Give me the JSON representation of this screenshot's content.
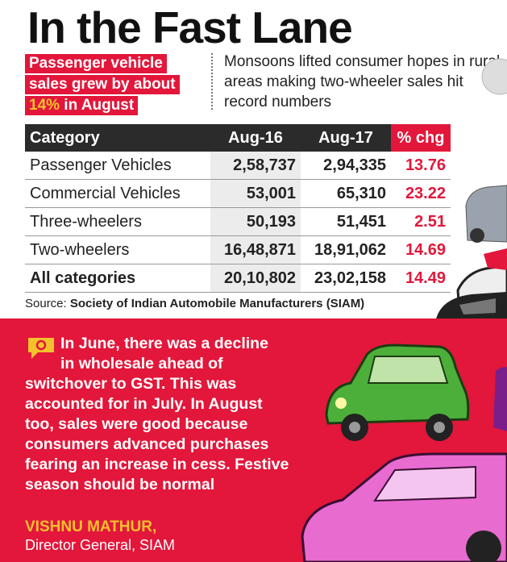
{
  "title": "In the Fast Lane",
  "highlight": {
    "line1": "Passenger vehicle",
    "line2": "sales grew by about",
    "pct": "14%",
    "line3_rest": " in August"
  },
  "note": "Monsoons lifted consumer hopes in rural areas making two-wheeler sales hit record numbers",
  "colors": {
    "accent_red": "#e2173b",
    "dark": "#2b2b2b",
    "yellow": "#f3c12c"
  },
  "chart_data": {
    "type": "table",
    "columns": [
      "Category",
      "Aug-16",
      "Aug-17",
      "% chg"
    ],
    "rows": [
      {
        "category": "Passenger Vehicles",
        "aug16": "2,58,737",
        "aug17": "2,94,335",
        "chg": "13.76"
      },
      {
        "category": "Commercial Vehicles",
        "aug16": "53,001",
        "aug17": "65,310",
        "chg": "23.22"
      },
      {
        "category": "Three-wheelers",
        "aug16": "50,193",
        "aug17": "51,451",
        "chg": "2.51"
      },
      {
        "category": "Two-wheelers",
        "aug16": "16,48,871",
        "aug17": "18,91,062",
        "chg": "14.69"
      },
      {
        "category": "All categories",
        "aug16": "20,10,802",
        "aug17": "23,02,158",
        "chg": "14.49"
      }
    ]
  },
  "source": {
    "label": "Source:",
    "name": "Society of Indian Automobile Manufacturers (SIAM)"
  },
  "quote": {
    "lines": [
      "In June, there was a decline",
      "in wholesale ahead of",
      "switchover to GST. This was",
      "accounted for in July. In August",
      "too, sales were good because",
      "consumers advanced purchases",
      "fearing an increase in cess. Festive",
      "season should be normal"
    ],
    "author": "VISHNU MATHUR,",
    "role": "Director General, SIAM"
  }
}
